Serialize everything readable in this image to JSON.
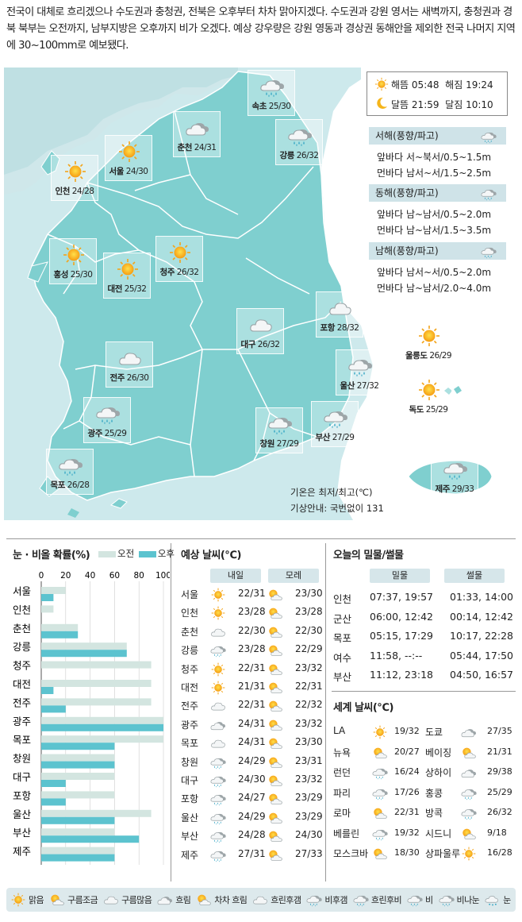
{
  "headline": "전국이 대체로 흐리겠으나 수도권과 충청권, 전북은 오후부터 차차 맑아지겠다. 수도권과 강원 영서는 새벽까지, 충청권과 경북 북부는 오전까지, 남부지방은 오후까지 비가 오겠다. 예상 강우량은 강원 영동과 경상권 동해안을 제외한 전국 나머지 지역에 30~100mm로 예보됐다.",
  "map_cities": [
    {
      "name": "속초",
      "temp": "25/30",
      "icon": "rain-icon"
    },
    {
      "name": "춘천",
      "temp": "24/31",
      "icon": "overcast-icon"
    },
    {
      "name": "강릉",
      "temp": "26/32",
      "icon": "rain-icon"
    },
    {
      "name": "서울",
      "temp": "24/30",
      "icon": "sunny-icon"
    },
    {
      "name": "인천",
      "temp": "24/28",
      "icon": "sunny-icon"
    },
    {
      "name": "홍성",
      "temp": "25/30",
      "icon": "sunny-icon"
    },
    {
      "name": "청주",
      "temp": "26/32",
      "icon": "sunny-icon"
    },
    {
      "name": "대전",
      "temp": "25/32",
      "icon": "sunny-icon"
    },
    {
      "name": "포항",
      "temp": "28/32",
      "icon": "cloudy-icon"
    },
    {
      "name": "대구",
      "temp": "26/32",
      "icon": "cloudy-icon"
    },
    {
      "name": "울릉도",
      "temp": "26/29",
      "icon": "sunny-icon"
    },
    {
      "name": "전주",
      "temp": "26/30",
      "icon": "cloudy-icon"
    },
    {
      "name": "울산",
      "temp": "27/32",
      "icon": "rain-icon"
    },
    {
      "name": "독도",
      "temp": "25/29",
      "icon": "sunny-icon"
    },
    {
      "name": "광주",
      "temp": "25/29",
      "icon": "rain-icon"
    },
    {
      "name": "창원",
      "temp": "27/29",
      "icon": "rain-icon"
    },
    {
      "name": "부산",
      "temp": "27/29",
      "icon": "rain-icon"
    },
    {
      "name": "목포",
      "temp": "26/28",
      "icon": "rain-icon"
    },
    {
      "name": "제주",
      "temp": "29/33",
      "icon": "rain-icon"
    }
  ],
  "sun_moon": {
    "sunrise_label": "해뜸",
    "sunrise": "05:48",
    "sunset_label": "해짐",
    "sunset": "19:24",
    "moonrise_label": "달뜸",
    "moonrise": "21:59",
    "moonset_label": "달짐",
    "moonset": "10:10"
  },
  "seas": [
    {
      "title": "서해(풍향/파고)",
      "front_label": "앞바다",
      "front": "서~북서/0.5~1.5m",
      "far_label": "먼바다",
      "far": "남서~서/1.5~2.5m"
    },
    {
      "title": "동해(풍향/파고)",
      "front_label": "앞바다",
      "front": "남~남서/0.5~2.0m",
      "far_label": "먼바다",
      "far": "남~남서/1.5~3.5m"
    },
    {
      "title": "남해(풍향/파고)",
      "front_label": "앞바다",
      "front": "남서~서/0.5~2.0m",
      "far_label": "먼바다",
      "far": "남~남서/2.0~4.0m"
    }
  ],
  "notes": {
    "temp": "기온은 최저/최고(℃)",
    "info": "기상안내: 국번없이 131"
  },
  "precip": {
    "title": "눈 · 비올 확률(%)",
    "am_label": "오전",
    "pm_label": "오후",
    "am_color": "#d3e5e0",
    "pm_color": "#5cc3cf",
    "ticks": [
      "0",
      "20",
      "40",
      "60",
      "80",
      "100"
    ]
  },
  "chart_data": {
    "type": "bar",
    "title": "눈 · 비올 확률(%)",
    "categories": [
      "서울",
      "인천",
      "춘천",
      "강릉",
      "청주",
      "대전",
      "전주",
      "광주",
      "목포",
      "창원",
      "대구",
      "포항",
      "울산",
      "부산",
      "제주"
    ],
    "series": [
      {
        "name": "오전",
        "values": [
          20,
          10,
          30,
          70,
          90,
          90,
          90,
          100,
          100,
          60,
          60,
          60,
          90,
          60,
          60
        ]
      },
      {
        "name": "오후",
        "values": [
          10,
          0,
          30,
          70,
          0,
          10,
          20,
          100,
          60,
          60,
          20,
          20,
          60,
          80,
          60
        ]
      }
    ],
    "ylim": [
      0,
      100
    ]
  },
  "forecast": {
    "title": "예상 날씨(℃)",
    "col1": "내일",
    "col2": "모레",
    "rows": [
      {
        "city": "서울",
        "i1": "sunny-icon",
        "t1": "22/31",
        "i2": "partly-cloudy-icon",
        "t2": "23/30"
      },
      {
        "city": "인천",
        "i1": "sunny-icon",
        "t1": "23/28",
        "i2": "partly-cloudy-icon",
        "t2": "23/28"
      },
      {
        "city": "춘천",
        "i1": "cloudy-icon",
        "t1": "22/30",
        "i2": "partly-cloudy-icon",
        "t2": "22/30"
      },
      {
        "city": "강릉",
        "i1": "rain-icon",
        "t1": "23/28",
        "i2": "partly-cloudy-icon",
        "t2": "22/29"
      },
      {
        "city": "청주",
        "i1": "sunny-icon",
        "t1": "22/31",
        "i2": "partly-cloudy-icon",
        "t2": "23/32"
      },
      {
        "city": "대전",
        "i1": "sunny-icon",
        "t1": "21/31",
        "i2": "partly-cloudy-icon",
        "t2": "22/31"
      },
      {
        "city": "전주",
        "i1": "cloudy-icon",
        "t1": "22/31",
        "i2": "partly-cloudy-icon",
        "t2": "22/32"
      },
      {
        "city": "광주",
        "i1": "overcast-icon",
        "t1": "24/31",
        "i2": "partly-cloudy-icon",
        "t2": "23/32"
      },
      {
        "city": "목포",
        "i1": "cloudy-icon",
        "t1": "24/31",
        "i2": "partly-cloudy-icon",
        "t2": "23/30"
      },
      {
        "city": "창원",
        "i1": "rain-icon",
        "t1": "24/29",
        "i2": "partly-cloudy-icon",
        "t2": "23/31"
      },
      {
        "city": "대구",
        "i1": "rain-icon",
        "t1": "24/30",
        "i2": "partly-cloudy-icon",
        "t2": "23/32"
      },
      {
        "city": "포항",
        "i1": "rain-icon",
        "t1": "24/27",
        "i2": "partly-cloudy-icon",
        "t2": "23/29"
      },
      {
        "city": "울산",
        "i1": "rain-icon",
        "t1": "24/29",
        "i2": "partly-cloudy-icon",
        "t2": "23/29"
      },
      {
        "city": "부산",
        "i1": "rain-icon",
        "t1": "24/28",
        "i2": "partly-cloudy-icon",
        "t2": "24/30"
      },
      {
        "city": "제주",
        "i1": "rain-icon",
        "t1": "27/31",
        "i2": "partly-cloudy-icon",
        "t2": "27/33"
      }
    ]
  },
  "tides": {
    "title": "오늘의 밀물/썰물",
    "col1": "밀물",
    "col2": "썰물",
    "rows": [
      {
        "place": "인천",
        "high": "07:37, 19:57",
        "low": "01:33, 14:00"
      },
      {
        "place": "군산",
        "high": "06:00, 12:42",
        "low": "00:14, 12:42"
      },
      {
        "place": "목포",
        "high": "05:15, 17:29",
        "low": "10:17, 22:28"
      },
      {
        "place": "여수",
        "high": "11:58,    --:--",
        "low": "05:44, 17:50"
      },
      {
        "place": "부산",
        "high": "11:12, 23:18",
        "low": "04:50, 16:57"
      }
    ]
  },
  "world": {
    "title": "세계 날씨(℃)",
    "rows": [
      {
        "c1": "LA",
        "i1": "sunny-icon",
        "t1": "19/32",
        "c2": "도쿄",
        "i2": "overcast-icon",
        "t2": "27/35"
      },
      {
        "c1": "뉴욕",
        "i1": "partly-cloudy-icon",
        "t1": "20/27",
        "c2": "베이징",
        "i2": "partly-cloudy-icon",
        "t2": "21/31"
      },
      {
        "c1": "런던",
        "i1": "rain-icon",
        "t1": "16/24",
        "c2": "상하이",
        "i2": "overcast-icon",
        "t2": "29/38"
      },
      {
        "c1": "파리",
        "i1": "rain-icon",
        "t1": "17/26",
        "c2": "홍콩",
        "i2": "rain-icon",
        "t2": "25/29"
      },
      {
        "c1": "로마",
        "i1": "partly-cloudy-icon",
        "t1": "22/31",
        "c2": "방콕",
        "i2": "rain-icon",
        "t2": "26/32"
      },
      {
        "c1": "베를린",
        "i1": "rain-icon",
        "t1": "19/32",
        "c2": "시드니",
        "i2": "partly-cloudy-icon",
        "t2": "9/18"
      },
      {
        "c1": "모스크바",
        "i1": "partly-cloudy-icon",
        "t1": "18/30",
        "c2": "상파울루",
        "i2": "sunny-icon",
        "t2": "16/28"
      }
    ]
  },
  "legend": [
    {
      "icon": "sunny-icon",
      "label": "맑음"
    },
    {
      "icon": "partly-cloudy-icon",
      "label": "구름조금"
    },
    {
      "icon": "cloudy-icon",
      "label": "구름많음"
    },
    {
      "icon": "overcast-icon",
      "label": "흐림"
    },
    {
      "icon": "partly-cloudy-icon",
      "label": "차차 흐림"
    },
    {
      "icon": "cloudy-icon",
      "label": "흐린후갬"
    },
    {
      "icon": "rain-icon",
      "label": "비후갬"
    },
    {
      "icon": "rain-icon",
      "label": "흐린후비"
    },
    {
      "icon": "rain-icon",
      "label": "비"
    },
    {
      "icon": "rain-icon",
      "label": "비나눈"
    },
    {
      "icon": "snow-icon",
      "label": "눈"
    }
  ],
  "colors": {
    "land": "#7fcfcf",
    "sea": "#cde9ec",
    "accent": "#5cc3cf",
    "sun": "#f7a21b"
  }
}
